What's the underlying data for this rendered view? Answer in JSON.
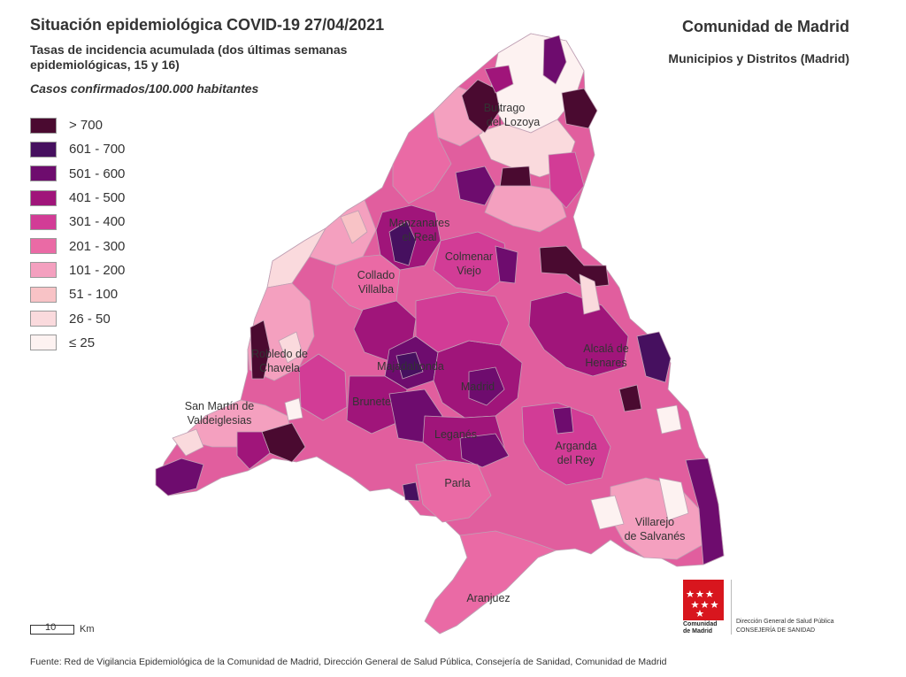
{
  "header": {
    "title": "Situación epidemiológica COVID-19  27/04/2021",
    "subtitle": "Tasas de incidencia acumulada (dos últimas semanas epidemiológicas, 15 y 16)",
    "units": "Casos confirmados/100.000 habitantes",
    "organization": "Comunidad de Madrid",
    "scope": "Municipios y Distritos (Madrid)"
  },
  "legend": {
    "items": [
      {
        "label": "> 700",
        "color": "#4a0a30"
      },
      {
        "label": "601 - 700",
        "color": "#46105f"
      },
      {
        "label": "501 - 600",
        "color": "#6e0c6e"
      },
      {
        "label": "401 - 500",
        "color": "#a0157a"
      },
      {
        "label": "301 - 400",
        "color": "#d23c96"
      },
      {
        "label": "201 - 300",
        "color": "#ea6aa5"
      },
      {
        "label": "101 - 200",
        "color": "#f4a0bf"
      },
      {
        "label": "51 - 100",
        "color": "#f8c3c6"
      },
      {
        "label": "26 - 50",
        "color": "#fadadd"
      },
      {
        "label": "≤ 25",
        "color": "#fdf2f1"
      }
    ]
  },
  "map": {
    "places": [
      {
        "name": "Buitrago",
        "line2": "del Lozoya"
      },
      {
        "name": "Manzanares",
        "line2": "el Real"
      },
      {
        "name": "Colmenar",
        "line2": "Viejo"
      },
      {
        "name": "Collado",
        "line2": "Villalba"
      },
      {
        "name": "Robledo de",
        "line2": "Chavela"
      },
      {
        "name": "Alcalá de",
        "line2": "Henares"
      },
      {
        "name": "Majadahonda",
        "line2": ""
      },
      {
        "name": "Madrid",
        "line2": ""
      },
      {
        "name": "San Martín de",
        "line2": "Valdeiglesias"
      },
      {
        "name": "Brunete",
        "line2": ""
      },
      {
        "name": "Leganés",
        "line2": ""
      },
      {
        "name": "Arganda",
        "line2": "del Rey"
      },
      {
        "name": "Parla",
        "line2": ""
      },
      {
        "name": "Villarejo",
        "line2": "de Salvanés"
      },
      {
        "name": "Aranjuez",
        "line2": ""
      }
    ]
  },
  "scale": {
    "value": "10",
    "unit": "Km"
  },
  "logo": {
    "name_line1": "Comunidad",
    "name_line2": "de Madrid",
    "dept_line1": "Dirección General de Salud Pública",
    "dept_line2": "CONSEJERÍA DE SANIDAD"
  },
  "footer": {
    "source": "Fuente: Red de Vigilancia Epidemiológica de la Comunidad de Madrid, Dirección General de Salud Pública, Consejería de Sanidad, Comunidad de Madrid"
  }
}
